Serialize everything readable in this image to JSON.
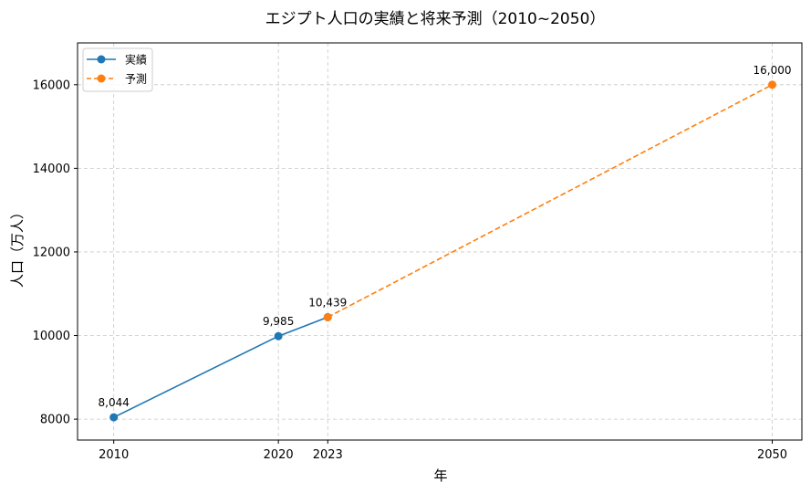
{
  "chart_data": {
    "type": "line",
    "title": "エジプト人口の実績と将来予測（2010~2050）",
    "xlabel": "年",
    "ylabel": "人口（万人）",
    "xlim": [
      2007.8,
      2051.8
    ],
    "ylim": [
      7500,
      17000
    ],
    "xticks": [
      2010,
      2020,
      2023,
      2050
    ],
    "yticks": [
      8000,
      10000,
      12000,
      14000,
      16000
    ],
    "grid": true,
    "legend_position": "top-left",
    "series": [
      {
        "name": "実績",
        "color": "#1f77b4",
        "linestyle": "solid",
        "points": [
          {
            "x": 2010,
            "y": 8044,
            "label": "8,044"
          },
          {
            "x": 2020,
            "y": 9985,
            "label": "9,985"
          },
          {
            "x": 2023,
            "y": 10439,
            "label": ""
          }
        ]
      },
      {
        "name": "予測",
        "color": "#ff7f0e",
        "linestyle": "dashed",
        "points": [
          {
            "x": 2023,
            "y": 10439,
            "label": "10,439"
          },
          {
            "x": 2050,
            "y": 16000,
            "label": "16,000"
          }
        ]
      }
    ]
  }
}
